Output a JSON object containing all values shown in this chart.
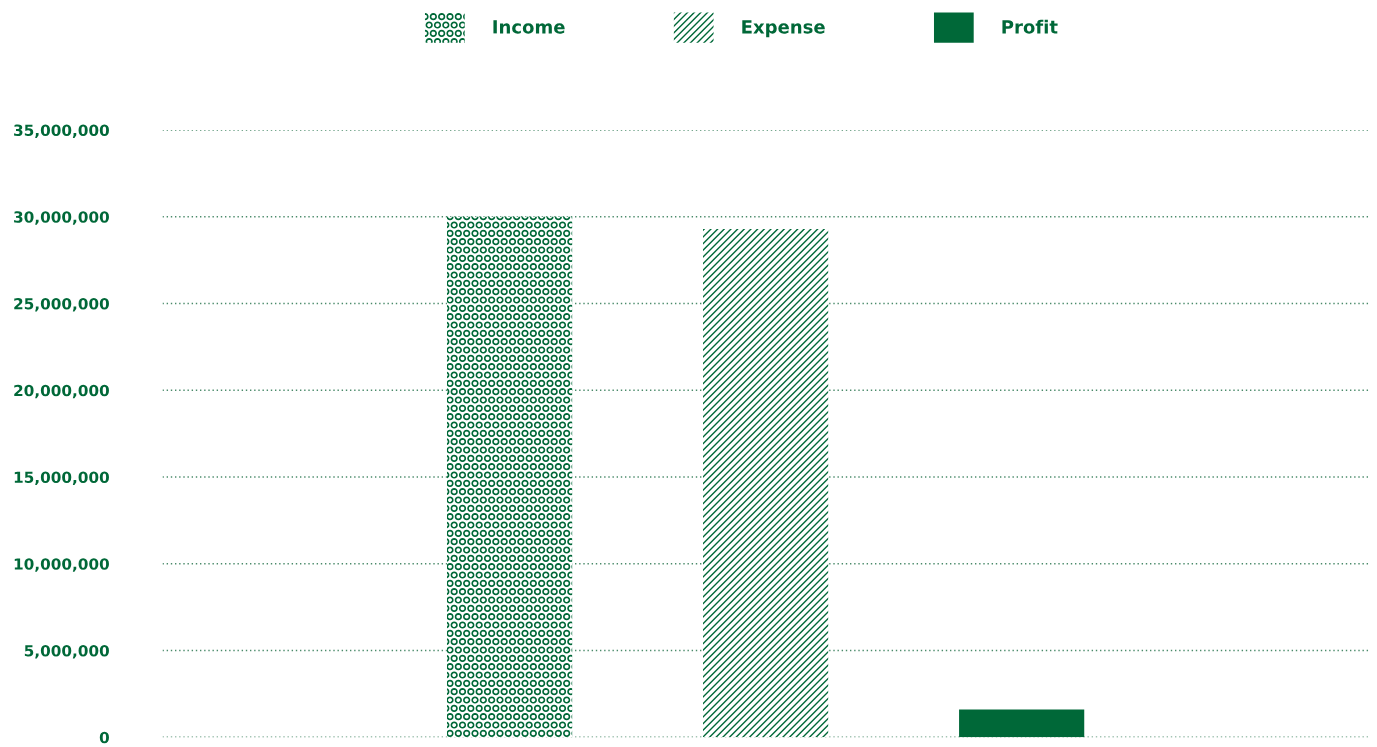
{
  "chart_data": {
    "type": "bar",
    "categories": [
      null
    ],
    "series": [
      {
        "name": "Income",
        "color": "#006838",
        "values": [
          30000000
        ]
      },
      {
        "name": "Expense",
        "color": "#006838",
        "values": [
          29300000
        ]
      },
      {
        "name": "Profit",
        "color": "#006838",
        "values": [
          1600000
        ]
      }
    ],
    "ylim": [
      0,
      35000000
    ],
    "yticks": [
      {
        "value": 0,
        "label": "0"
      },
      {
        "value": 5000000,
        "label": "5,000,000"
      },
      {
        "value": 10000000,
        "label": "10,000,000"
      },
      {
        "value": 15000000,
        "label": "15,000,000"
      },
      {
        "value": 20000000,
        "label": "20,000,000"
      },
      {
        "value": 25000000,
        "label": "25,000,000"
      },
      {
        "value": 30000000,
        "label": "30,000,000"
      },
      {
        "value": 35000000,
        "label": "35,000,000"
      }
    ],
    "grid": "y",
    "legend": "top"
  }
}
